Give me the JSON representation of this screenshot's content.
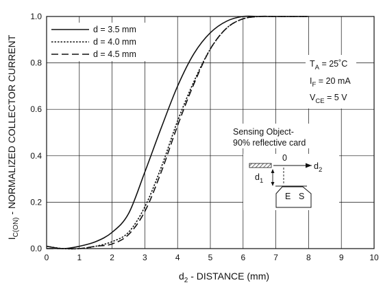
{
  "chart_data": {
    "type": "line",
    "xlabel_main": "d",
    "xlabel_sub": "2",
    "xlabel_rest": " - DISTANCE (mm)",
    "ylabel_main": "I",
    "ylabel_sub": "C(ON)",
    "ylabel_rest": " - NORMALIZED COLLECTOR CURRENT",
    "xlim": [
      0,
      10
    ],
    "ylim": [
      0,
      1.0
    ],
    "x_ticks": [
      "0",
      "1",
      "2",
      "3",
      "4",
      "5",
      "6",
      "7",
      "8",
      "9",
      "10"
    ],
    "y_ticks": [
      "0.0",
      "0.2",
      "0.4",
      "0.6",
      "0.8",
      "1.0"
    ],
    "grid": true,
    "legend_position": "top-left",
    "series": [
      {
        "name": "d = 3.5 mm",
        "dash": "solid",
        "x": [
          0,
          0.5,
          1,
          1.5,
          2,
          2.5,
          3,
          3.5,
          4,
          4.5,
          5,
          5.5,
          6,
          6.5,
          7,
          7.5,
          8
        ],
        "y": [
          0.01,
          0.0,
          0.01,
          0.03,
          0.07,
          0.15,
          0.33,
          0.52,
          0.7,
          0.84,
          0.93,
          0.98,
          1.0,
          1.0,
          1.0,
          1.0,
          1.0
        ]
      },
      {
        "name": "d = 4.0 mm",
        "dash": "dotted",
        "x": [
          0,
          0.5,
          1,
          1.5,
          2,
          2.5,
          3,
          3.5,
          4,
          4.5,
          5,
          5.5,
          6,
          6.5,
          7,
          7.5,
          8
        ],
        "y": [
          0.01,
          0.0,
          0.0,
          0.01,
          0.03,
          0.07,
          0.18,
          0.35,
          0.55,
          0.72,
          0.86,
          0.95,
          0.99,
          1.0,
          1.0,
          1.0,
          1.0
        ]
      },
      {
        "name": "d = 4.5 mm",
        "dash": "dashed",
        "x": [
          0,
          0.5,
          1,
          1.5,
          2,
          2.5,
          3,
          3.5,
          4,
          4.5,
          5,
          5.5,
          6,
          6.5,
          7,
          7.5,
          8
        ],
        "y": [
          0.0,
          0.0,
          0.0,
          0.01,
          0.02,
          0.06,
          0.16,
          0.33,
          0.53,
          0.71,
          0.86,
          0.95,
          0.99,
          1.0,
          1.0,
          1.0,
          1.0
        ]
      }
    ],
    "conditions": [
      {
        "main": "T",
        "sub": "A",
        "rest": " = 25˚C"
      },
      {
        "main": "I",
        "sub": "F",
        "rest": " = 20 mA"
      },
      {
        "main": "V",
        "sub": "CE",
        "rest": " = 5 V"
      }
    ],
    "sensing_note": [
      "Sensing Object-",
      "90% reflective card"
    ],
    "diagram": {
      "zero_label": "0",
      "d2_main": "d",
      "d2_sub": "2",
      "d1_main": "d",
      "d1_sub": "1",
      "emitter_label": "E",
      "sensor_label": "S"
    }
  }
}
